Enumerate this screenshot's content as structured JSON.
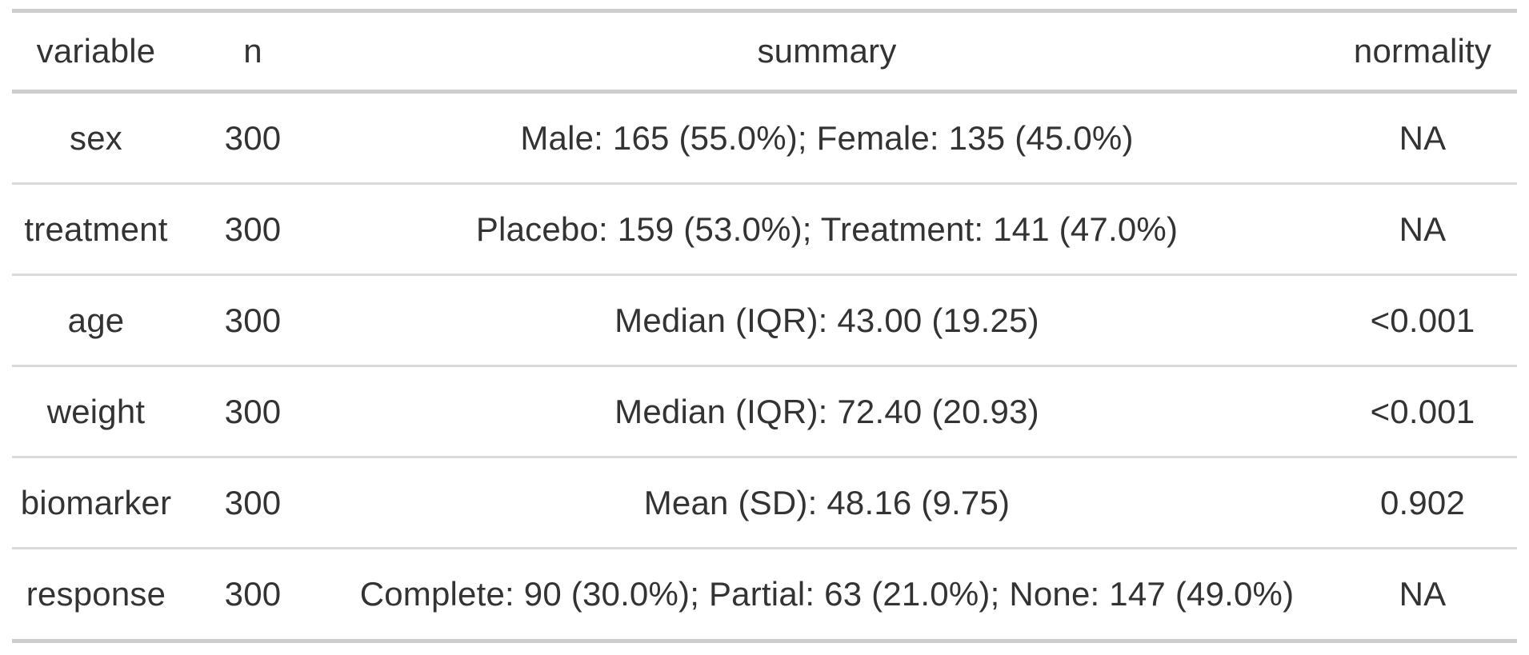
{
  "chart_data": {
    "type": "table",
    "columns": [
      "variable",
      "n",
      "summary",
      "normality"
    ],
    "rows": [
      [
        "sex",
        "300",
        "Male: 165 (55.0%); Female: 135 (45.0%)",
        "NA"
      ],
      [
        "treatment",
        "300",
        "Placebo: 159 (53.0%); Treatment: 141 (47.0%)",
        "NA"
      ],
      [
        "age",
        "300",
        "Median (IQR): 43.00 (19.25)",
        "<0.001"
      ],
      [
        "weight",
        "300",
        "Median (IQR): 72.40 (20.93)",
        "<0.001"
      ],
      [
        "biomarker",
        "300",
        "Mean (SD): 48.16 (9.75)",
        "0.902"
      ],
      [
        "response",
        "300",
        "Complete: 90 (30.0%); Partial: 63 (21.0%); None: 147 (49.0%)",
        "NA"
      ]
    ],
    "title": "",
    "legend": "none",
    "grid": "horizontal-rules-only"
  },
  "colors": {
    "background": "#ffffff",
    "text": "#333333",
    "outer_rule": "#cdcdcd",
    "row_divider": "#dadada"
  }
}
